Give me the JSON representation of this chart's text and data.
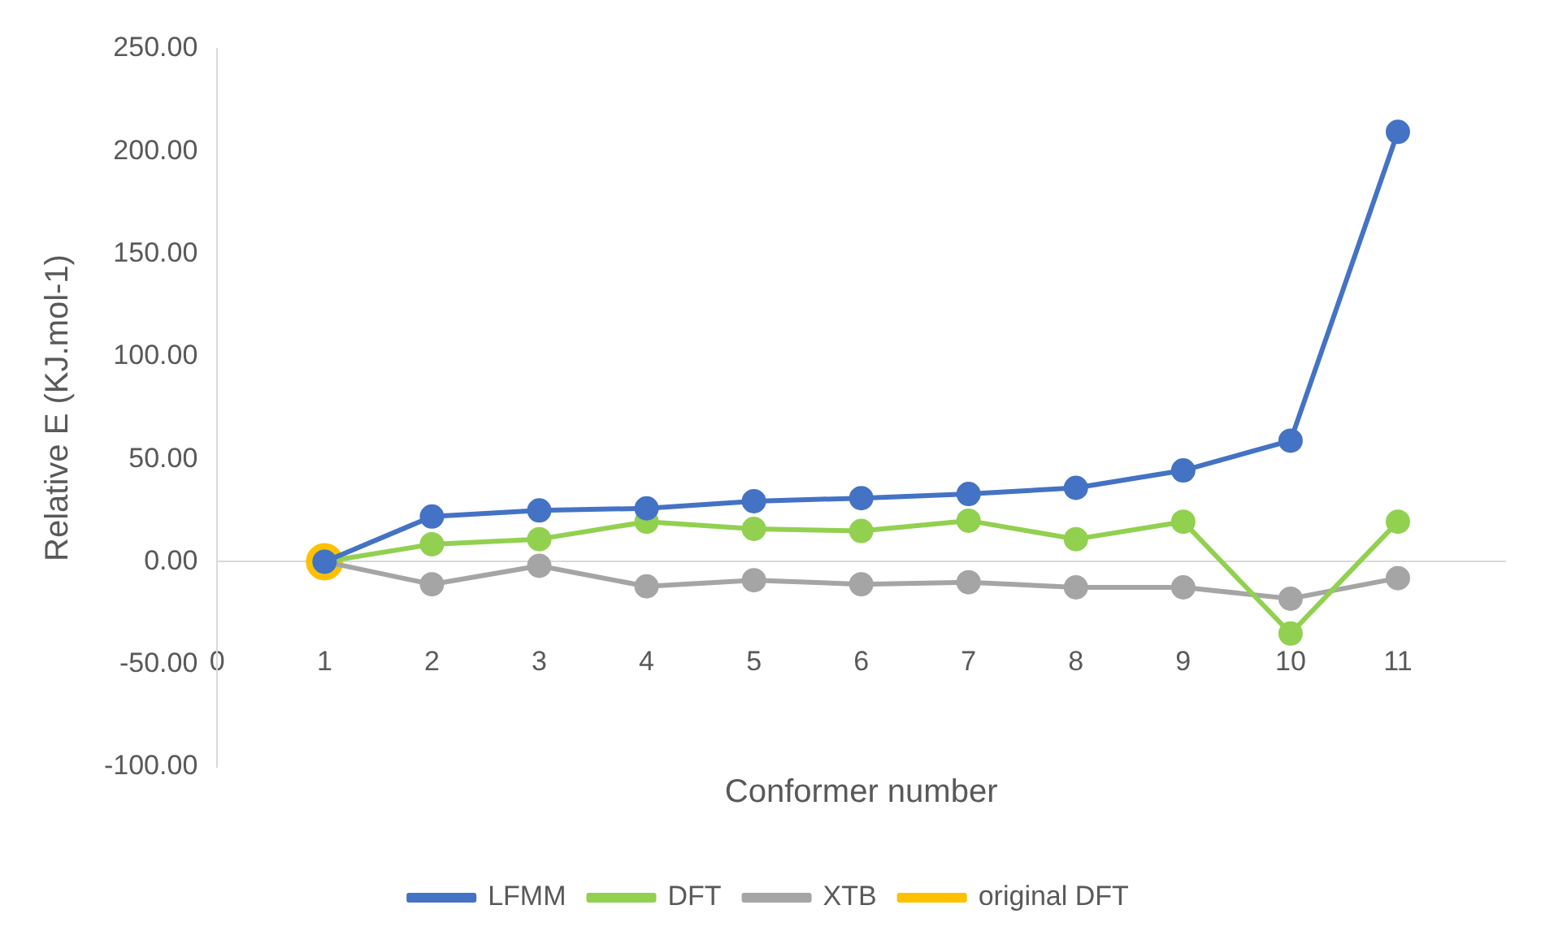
{
  "chart_data": {
    "type": "line",
    "xlabel": "Conformer number",
    "ylabel": "Relative E (KJ.mol-1)",
    "xlim": [
      0,
      12
    ],
    "xticks": [
      0,
      1,
      2,
      3,
      4,
      5,
      6,
      7,
      8,
      9,
      10,
      11
    ],
    "ylim": [
      -100,
      250
    ],
    "yticks": [
      {
        "value": -100,
        "label": "-100.00"
      },
      {
        "value": -50,
        "label": "-50.00"
      },
      {
        "value": 0,
        "label": "0.00"
      },
      {
        "value": 50,
        "label": "50.00"
      },
      {
        "value": 100,
        "label": "100.00"
      },
      {
        "value": 150,
        "label": "150.00"
      },
      {
        "value": 200,
        "label": "200.00"
      },
      {
        "value": 250,
        "label": "250.00"
      }
    ],
    "legend": "bottom",
    "marker": "circle",
    "line_style": "solid",
    "series": [
      {
        "name": "LFMM",
        "color": "#4472c4",
        "x": [
          1,
          2,
          3,
          4,
          5,
          6,
          7,
          8,
          9,
          10,
          11
        ],
        "values": [
          0,
          22,
          25,
          26,
          29.5,
          31,
          33,
          36,
          44.5,
          59,
          209.5
        ]
      },
      {
        "name": "DFT",
        "color": "#92d050",
        "x": [
          1,
          2,
          3,
          4,
          5,
          6,
          7,
          8,
          9,
          10,
          11
        ],
        "values": [
          0,
          8.5,
          11,
          19.5,
          16,
          15,
          20,
          11,
          19.5,
          -35,
          19.5
        ]
      },
      {
        "name": "XTB",
        "color": "#a5a5a5",
        "x": [
          1,
          2,
          3,
          4,
          5,
          6,
          7,
          8,
          9,
          10,
          11
        ],
        "values": [
          0,
          -11,
          -2,
          -12,
          -9,
          -11,
          -10,
          -12.5,
          -12.5,
          -18,
          -8
        ]
      },
      {
        "name": "original DFT",
        "color": "#ffc000",
        "x": [
          1
        ],
        "values": [
          0
        ]
      }
    ]
  }
}
